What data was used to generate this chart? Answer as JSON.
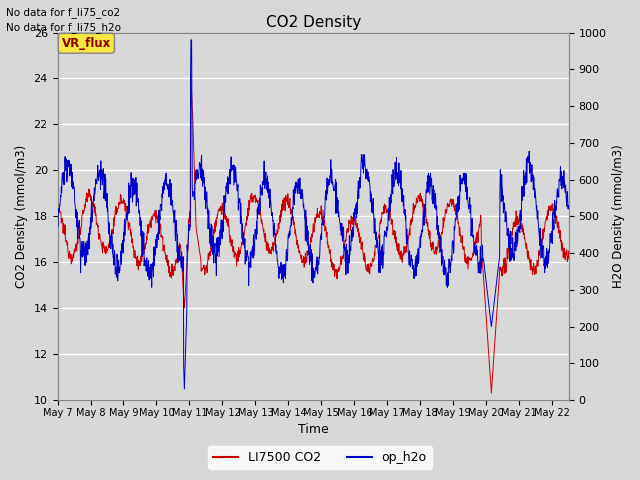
{
  "title": "CO2 Density",
  "xlabel": "Time",
  "ylabel_left": "CO2 Density (mmol/m3)",
  "ylabel_right": "H2O Density (mmol/m3)",
  "ylim_left": [
    10,
    26
  ],
  "ylim_right": [
    0,
    1000
  ],
  "yticks_left": [
    10,
    12,
    14,
    16,
    18,
    20,
    22,
    24,
    26
  ],
  "yticks_right": [
    0,
    100,
    200,
    300,
    400,
    500,
    600,
    700,
    800,
    900,
    1000
  ],
  "xtick_labels": [
    "May 7",
    "May 8",
    "May 9",
    "May 10",
    "May 11",
    "May 12",
    "May 13",
    "May 14",
    "May 15",
    "May 16",
    "May 17",
    "May 18",
    "May 19",
    "May 20",
    "May 21",
    "May 22"
  ],
  "annotation_line1": "No data for f_li75_co2",
  "annotation_line2": "No data for f_li75_h2o",
  "vr_flux_label": "VR_flux",
  "legend_co2": "LI7500 CO2",
  "legend_h2o": "op_h2o",
  "co2_color": "#cc0000",
  "h2o_color": "#0000cc",
  "bg_color": "#d8d8d8",
  "plot_bg_color": "#d8d8d8",
  "grid_color": "#ffffff",
  "vr_flux_bg": "#f5e642",
  "vr_flux_text_color": "#8b0000",
  "xlim": [
    0,
    15.5
  ],
  "n_days": 16,
  "n_per_day": 96
}
